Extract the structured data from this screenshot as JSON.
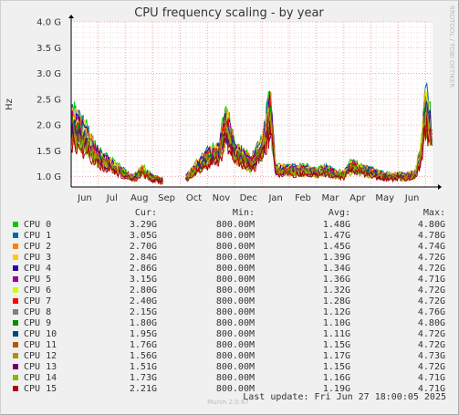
{
  "chart_data": {
    "type": "line",
    "title": "CPU frequency scaling - by year",
    "ylabel": "Hz",
    "side_label": "RRDTOOL / TOBI OETIKER",
    "y_ticks": [
      "1.0 G",
      "1.5 G",
      "2.0 G",
      "2.5 G",
      "3.0 G",
      "3.5 G",
      "4.0 G"
    ],
    "y_tick_values": [
      1.0,
      1.5,
      2.0,
      2.5,
      3.0,
      3.5,
      4.0
    ],
    "ylim": [
      0.8,
      4.0
    ],
    "x_ticks": [
      "Jun",
      "Jul",
      "Aug",
      "Sep",
      "Oct",
      "Nov",
      "Dec",
      "Jan",
      "Feb",
      "Mar",
      "Apr",
      "May",
      "Jun"
    ],
    "x_tick_months": [
      0.5,
      1.5,
      2.5,
      3.5,
      4.5,
      5.5,
      6.5,
      7.5,
      8.5,
      9.5,
      10.5,
      11.5,
      12.5
    ],
    "xlim_months": [
      0,
      13.25
    ],
    "grid": true,
    "profile_months": [
      0.0,
      0.3,
      0.6,
      1.0,
      1.5,
      2.0,
      2.3,
      2.6,
      3.0,
      3.4,
      3.6,
      3.9,
      4.2,
      4.5,
      5.0,
      5.4,
      5.7,
      6.0,
      6.3,
      6.6,
      7.0,
      7.3,
      7.5,
      8.0,
      8.5,
      9.0,
      9.4,
      9.7,
      10.0,
      10.3,
      10.6,
      11.0,
      11.5,
      12.0,
      12.3,
      12.6,
      12.8,
      13.0,
      13.25
    ],
    "profile_ghz": [
      2.3,
      2.1,
      1.9,
      1.5,
      1.3,
      1.1,
      1.0,
      1.2,
      1.0,
      0.95,
      null,
      null,
      1.0,
      1.2,
      1.5,
      1.6,
      2.3,
      1.6,
      1.5,
      1.35,
      1.7,
      2.6,
      1.2,
      1.2,
      1.2,
      1.15,
      1.2,
      1.1,
      1.1,
      1.3,
      1.2,
      1.15,
      1.05,
      1.05,
      1.05,
      1.1,
      1.5,
      2.7,
      2.0
    ],
    "series": [
      {
        "name": "CPU 0",
        "color": "#00cc00",
        "cur": "3.29G",
        "min": "800.00M",
        "avg": "1.48G",
        "max": "4.80G"
      },
      {
        "name": "CPU 1",
        "color": "#0066b3",
        "cur": "3.05G",
        "min": "800.00M",
        "avg": "1.47G",
        "max": "4.78G"
      },
      {
        "name": "CPU 2",
        "color": "#ff8000",
        "cur": "2.70G",
        "min": "800.00M",
        "avg": "1.45G",
        "max": "4.74G"
      },
      {
        "name": "CPU 3",
        "color": "#ffcc00",
        "cur": "2.84G",
        "min": "800.00M",
        "avg": "1.39G",
        "max": "4.72G"
      },
      {
        "name": "CPU 4",
        "color": "#330099",
        "cur": "2.86G",
        "min": "800.00M",
        "avg": "1.34G",
        "max": "4.72G"
      },
      {
        "name": "CPU 5",
        "color": "#990099",
        "cur": "3.15G",
        "min": "800.00M",
        "avg": "1.36G",
        "max": "4.71G"
      },
      {
        "name": "CPU 6",
        "color": "#ccff00",
        "cur": "2.80G",
        "min": "800.00M",
        "avg": "1.32G",
        "max": "4.72G"
      },
      {
        "name": "CPU 7",
        "color": "#ff0000",
        "cur": "2.40G",
        "min": "800.00M",
        "avg": "1.28G",
        "max": "4.72G"
      },
      {
        "name": "CPU 8",
        "color": "#808080",
        "cur": "2.15G",
        "min": "800.00M",
        "avg": "1.12G",
        "max": "4.76G"
      },
      {
        "name": "CPU 9",
        "color": "#008f00",
        "cur": "1.80G",
        "min": "800.00M",
        "avg": "1.10G",
        "max": "4.80G"
      },
      {
        "name": "CPU 10",
        "color": "#00487d",
        "cur": "1.95G",
        "min": "800.00M",
        "avg": "1.11G",
        "max": "4.72G"
      },
      {
        "name": "CPU 11",
        "color": "#b35a00",
        "cur": "1.76G",
        "min": "800.00M",
        "avg": "1.15G",
        "max": "4.72G"
      },
      {
        "name": "CPU 12",
        "color": "#b38f00",
        "cur": "1.56G",
        "min": "800.00M",
        "avg": "1.17G",
        "max": "4.73G"
      },
      {
        "name": "CPU 13",
        "color": "#6b006b",
        "cur": "1.51G",
        "min": "800.00M",
        "avg": "1.15G",
        "max": "4.72G"
      },
      {
        "name": "CPU 14",
        "color": "#8fb300",
        "cur": "1.73G",
        "min": "800.00M",
        "avg": "1.16G",
        "max": "4.71G"
      },
      {
        "name": "CPU 15",
        "color": "#b30000",
        "cur": "2.21G",
        "min": "800.00M",
        "avg": "1.19G",
        "max": "4.71G"
      }
    ]
  },
  "legend": {
    "headers": {
      "cur": "Cur:",
      "min": "Min:",
      "avg": "Avg:",
      "max": "Max:"
    }
  },
  "footer": {
    "munin": "Munin 2.0.67",
    "last_update": "Last update: Fri Jun 27 18:00:05 2025"
  }
}
